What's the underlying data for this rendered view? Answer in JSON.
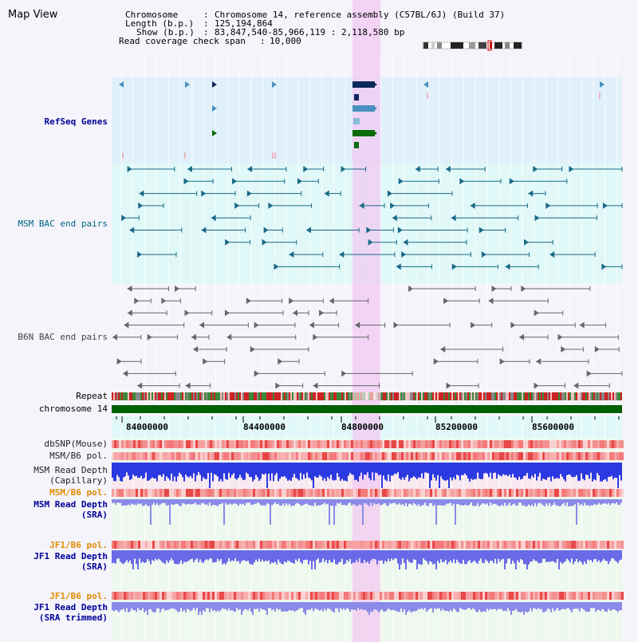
{
  "page_title": "Map View",
  "header": {
    "chromosome_label": "Chromosome",
    "chromosome_value": "Chromosome 14, reference assembly (C57BL/6J) (Build 37)",
    "length_label": "Length (b.p.)",
    "length_value": "125,194,864",
    "show_label": "Show (b.p.)",
    "show_value": "83,847,540-85,966,119 : 2,118,580 bp",
    "coverage_label": "Read coverage check span",
    "coverage_value": "10,000"
  },
  "tracks": {
    "refseq": "RefSeq Genes",
    "msm_bac": "MSM BAC end pairs",
    "b6n_bac": "B6N BAC end pairs",
    "repeat": "Repeat",
    "chromosome": "chromosome 14",
    "dbsnp": "dbSNP(Mouse)",
    "msm_b6_pol_1": "MSM/B6 pol.",
    "msm_depth_cap_1": "MSM Read Depth",
    "msm_depth_cap_2": "(Capillary)",
    "msm_b6_pol_2": "MSM/B6 pol.",
    "msm_depth_sra_1": "MSM Read Depth",
    "msm_depth_sra_2": "(SRA)",
    "jf1_b6_pol_1": "JF1/B6 pol.",
    "jf1_depth_sra_1": "JF1 Read Depth",
    "jf1_depth_sra_2": "(SRA)",
    "jf1_b6_pol_2": "JF1/B6 pol.",
    "jf1_depth_trim_1": "JF1 Read Depth",
    "jf1_depth_trim_2": "(SRA trimmed)"
  },
  "axis": {
    "ticks": [
      "84000000",
      "84400000",
      "84800000",
      "85200000",
      "85600000"
    ]
  },
  "colors": {
    "refseq_label": "#000099",
    "bac_label": "#006680",
    "pol_label": "#e08a00",
    "depth_label": "#000099",
    "highlight": "#f2c6f2",
    "gene_dark": "#0a2a5a",
    "gene_blue": "#4a90c0",
    "gene_green": "#0a6a0a",
    "chrom_bar": "#006000"
  }
}
